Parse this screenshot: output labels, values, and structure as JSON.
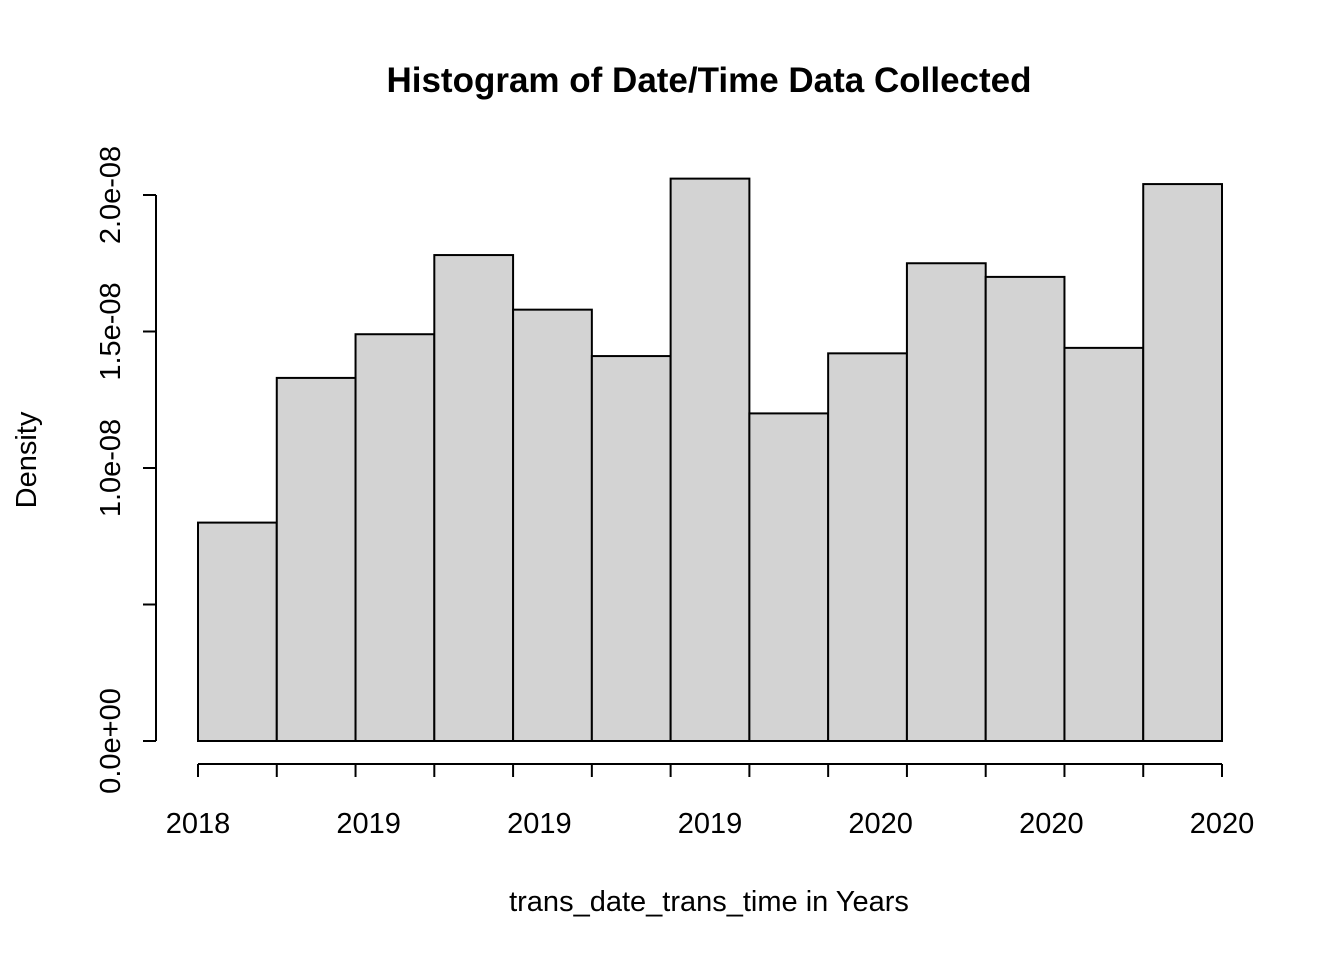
{
  "chart_data": {
    "type": "bar",
    "title": "Histogram of Date/Time Data Collected",
    "xlabel": "trans_date_trans_time in Years",
    "ylabel": "Density",
    "x_tick_labels": [
      "2018",
      "2019",
      "2019",
      "2019",
      "2020",
      "2020",
      "2020"
    ],
    "y_tick_labels": [
      "0.0e+00",
      "",
      "1.0e-08",
      "1.5e-08",
      "2.0e-08"
    ],
    "y_ticks": [
      0,
      5e-09,
      1e-08,
      1.5e-08,
      2e-08
    ],
    "ylim": [
      0,
      2e-08
    ],
    "bin_count": 13,
    "values": [
      8e-09,
      1.33e-08,
      1.49e-08,
      1.78e-08,
      1.58e-08,
      1.41e-08,
      2.06e-08,
      1.2e-08,
      1.42e-08,
      1.75e-08,
      1.7e-08,
      1.44e-08,
      2.04e-08
    ],
    "bar_color": "#d3d3d3",
    "edge_color": "#000000",
    "grid": false,
    "legend": "none"
  }
}
